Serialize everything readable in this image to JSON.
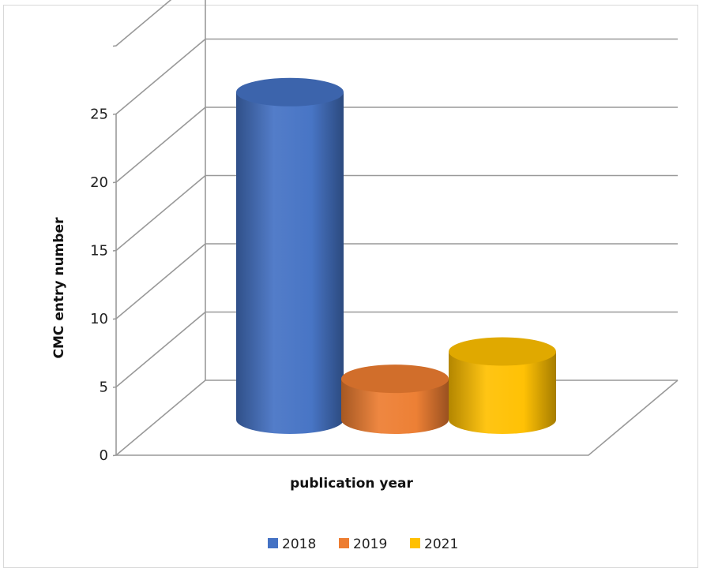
{
  "chart_data": {
    "type": "bar",
    "style": "3d-cylinder",
    "title": "",
    "xlabel": "publication year",
    "ylabel": "CMC entry number",
    "ylim": [
      0,
      25
    ],
    "yticks": [
      0,
      5,
      10,
      15,
      20,
      25
    ],
    "grid": true,
    "legend_position": "bottom",
    "series": [
      {
        "name": "2018",
        "values": [
          24
        ],
        "color": "#4472c4"
      },
      {
        "name": "2019",
        "values": [
          3
        ],
        "color": "#ed7d31"
      },
      {
        "name": "2021",
        "values": [
          5
        ],
        "color": "#ffc000"
      }
    ]
  }
}
